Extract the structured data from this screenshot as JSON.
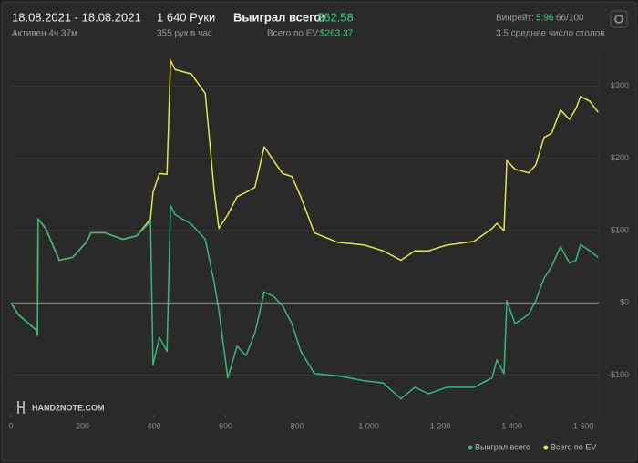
{
  "header": {
    "date_range": "18.08.2021 - 18.08.2021",
    "active": "Активен 4ч 37м",
    "hands": "1 640 Руки",
    "rate": "355 рук в час",
    "won_label": "Выиграл всего:",
    "won_value": "$62.58",
    "ev_label": "Всего по EV:",
    "ev_value": "$263.37",
    "winrate_label": "Винрейт:",
    "winrate_value": "5.96",
    "winrate_extra": "66/100",
    "tables": "3.5 среднее число столов"
  },
  "logo": "HAND2NOTE.COM",
  "chart_data": {
    "type": "line",
    "x": [
      0,
      20,
      71,
      74,
      76,
      97,
      135,
      173,
      211,
      224,
      262,
      313,
      352,
      390,
      397,
      415,
      436,
      446,
      459,
      504,
      543,
      568,
      581,
      606,
      632,
      657,
      682,
      708,
      734,
      759,
      785,
      810,
      848,
      912,
      988,
      1040,
      1090,
      1129,
      1167,
      1218,
      1294,
      1345,
      1358,
      1378,
      1386,
      1409,
      1447,
      1467,
      1490,
      1511,
      1536,
      1561,
      1579,
      1592,
      1618,
      1641
    ],
    "series": [
      {
        "name": "Выиграл всего",
        "color": "#35b97a",
        "values": [
          0,
          -16,
          -38,
          -45,
          116,
          103,
          59,
          63,
          84,
          97,
          97,
          88,
          93,
          113,
          -86,
          -48,
          -67,
          135,
          122,
          109,
          88,
          28,
          -10,
          -104,
          -60,
          -73,
          -42,
          15,
          9,
          -4,
          -29,
          -67,
          -98,
          -101,
          -108,
          -111,
          -133,
          -117,
          -126,
          -117,
          -117,
          -104,
          -79,
          -98,
          3,
          -29,
          -16,
          3,
          34,
          50,
          78,
          55,
          59,
          81,
          72,
          63
        ]
      },
      {
        "name": "Всего по EV",
        "color": "#e6e64a",
        "values": [
          0,
          -16,
          -38,
          -45,
          116,
          103,
          59,
          63,
          84,
          97,
          97,
          88,
          93,
          116,
          153,
          179,
          178,
          336,
          323,
          317,
          290,
          155,
          103,
          122,
          147,
          153,
          160,
          216,
          197,
          179,
          175,
          147,
          97,
          84,
          80,
          72,
          59,
          72,
          72,
          80,
          85,
          103,
          110,
          100,
          197,
          185,
          180,
          191,
          229,
          235,
          267,
          254,
          269,
          286,
          279,
          264
        ]
      }
    ],
    "xlim": [
      0,
      1643
    ],
    "ylim": [
      -155,
      350
    ],
    "xticks": [
      0,
      200,
      400,
      600,
      800,
      {
        "value": 1000,
        "label": "1 000"
      },
      {
        "value": 1200,
        "label": "1 200"
      },
      {
        "value": 1400,
        "label": "1 400"
      },
      {
        "value": 1600,
        "label": "1 600"
      }
    ],
    "yticks": [
      {
        "value": -100,
        "label": "-$100"
      },
      {
        "value": 0,
        "label": "$0"
      },
      {
        "value": 100,
        "label": "$100"
      },
      {
        "value": 200,
        "label": "$200"
      },
      {
        "value": 300,
        "label": "$300"
      }
    ],
    "grid": true
  }
}
